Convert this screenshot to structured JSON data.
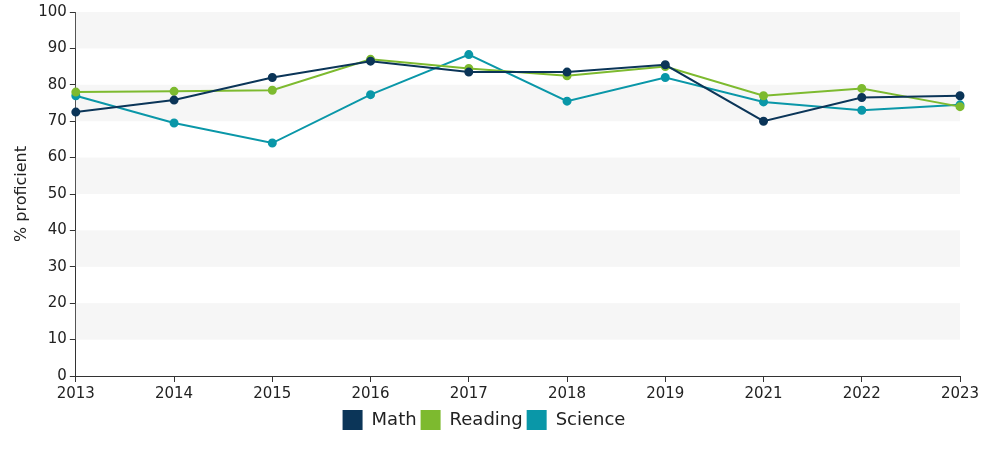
{
  "chart_data": {
    "type": "line",
    "y_label": "% proficient",
    "categories": [
      "2013",
      "2014",
      "2015",
      "2016",
      "2017",
      "2018",
      "2019",
      "2021",
      "2022",
      "2023"
    ],
    "series": [
      {
        "name": "Math",
        "color": "#0b3558",
        "marker": "circle",
        "values": [
          72.5,
          75.8,
          82,
          86.5,
          83.5,
          83.5,
          85.5,
          70,
          76.5,
          77
        ]
      },
      {
        "name": "Reading",
        "color": "#7dba2f",
        "marker": "circle",
        "values": [
          78,
          78.2,
          78.5,
          87,
          84.5,
          82.5,
          85,
          77,
          79,
          74
        ]
      },
      {
        "name": "Science",
        "color": "#0a97a8",
        "marker": "circle",
        "values": [
          77,
          69.5,
          64,
          77.3,
          88.3,
          75.5,
          82,
          75.3,
          73,
          74.5
        ]
      }
    ],
    "ylim": [
      0,
      100
    ],
    "yticks": [
      0,
      10,
      20,
      30,
      40,
      50,
      60,
      70,
      80,
      90,
      100
    ],
    "grid": true,
    "legend": "bottom"
  }
}
